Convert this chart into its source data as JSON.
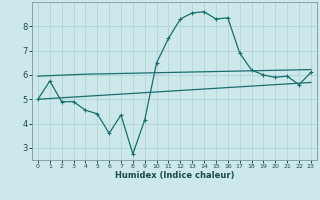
{
  "xlabel": "Humidex (Indice chaleur)",
  "background_color": "#cce8ea",
  "grid_color": "#b0d4d8",
  "line_color": "#1a6e6e",
  "x_values": [
    0,
    1,
    2,
    3,
    4,
    5,
    6,
    7,
    8,
    9,
    10,
    11,
    12,
    13,
    14,
    15,
    16,
    17,
    18,
    19,
    20,
    21,
    22,
    23
  ],
  "y_main": [
    5.0,
    5.75,
    4.9,
    4.9,
    4.55,
    4.4,
    3.6,
    4.35,
    2.75,
    4.15,
    6.5,
    7.5,
    8.3,
    8.55,
    8.6,
    8.3,
    8.35,
    6.9,
    6.2,
    6.0,
    5.9,
    5.95,
    5.6,
    6.1
  ],
  "y_upper": [
    5.95,
    5.97,
    5.99,
    6.01,
    6.03,
    6.04,
    6.05,
    6.06,
    6.07,
    6.08,
    6.09,
    6.1,
    6.11,
    6.12,
    6.13,
    6.14,
    6.15,
    6.16,
    6.17,
    6.18,
    6.19,
    6.2,
    6.21,
    6.22
  ],
  "y_lower": [
    5.0,
    5.03,
    5.06,
    5.09,
    5.12,
    5.15,
    5.18,
    5.21,
    5.24,
    5.27,
    5.3,
    5.33,
    5.36,
    5.39,
    5.42,
    5.45,
    5.48,
    5.51,
    5.54,
    5.57,
    5.6,
    5.63,
    5.66,
    5.69
  ],
  "ylim": [
    2.5,
    9.0
  ],
  "yticks": [
    3,
    4,
    5,
    6,
    7,
    8
  ],
  "xticks": [
    0,
    1,
    2,
    3,
    4,
    5,
    6,
    7,
    8,
    9,
    10,
    11,
    12,
    13,
    14,
    15,
    16,
    17,
    18,
    19,
    20,
    21,
    22,
    23
  ]
}
